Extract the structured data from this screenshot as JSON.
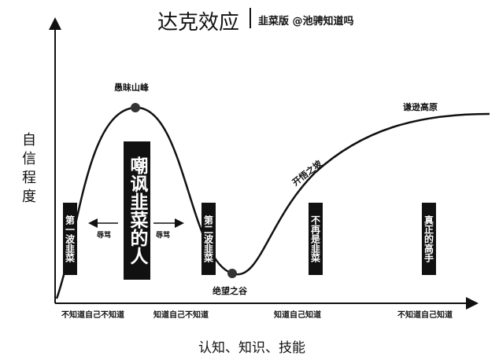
{
  "header": {
    "title": "达克效应",
    "subtitle": "韭菜版 @池骋知道吗"
  },
  "axes": {
    "y_label": "自信程度",
    "x_label": "认知、知识、技能"
  },
  "annotations": {
    "peak": "愚昧山峰",
    "valley": "绝望之谷",
    "slope": "开悟之坡",
    "plateau": "谦逊高原"
  },
  "groups": [
    "第一波韭菜",
    "嘲讽韭菜的人",
    "第二波韭菜",
    "不再是韭菜",
    "真正的高手"
  ],
  "arrows": {
    "left": "辱骂",
    "right": "辱骂"
  },
  "stages": [
    "不知道自己不知道",
    "知道自己不知道",
    "知道自己知道",
    "不知道自己知道"
  ]
}
